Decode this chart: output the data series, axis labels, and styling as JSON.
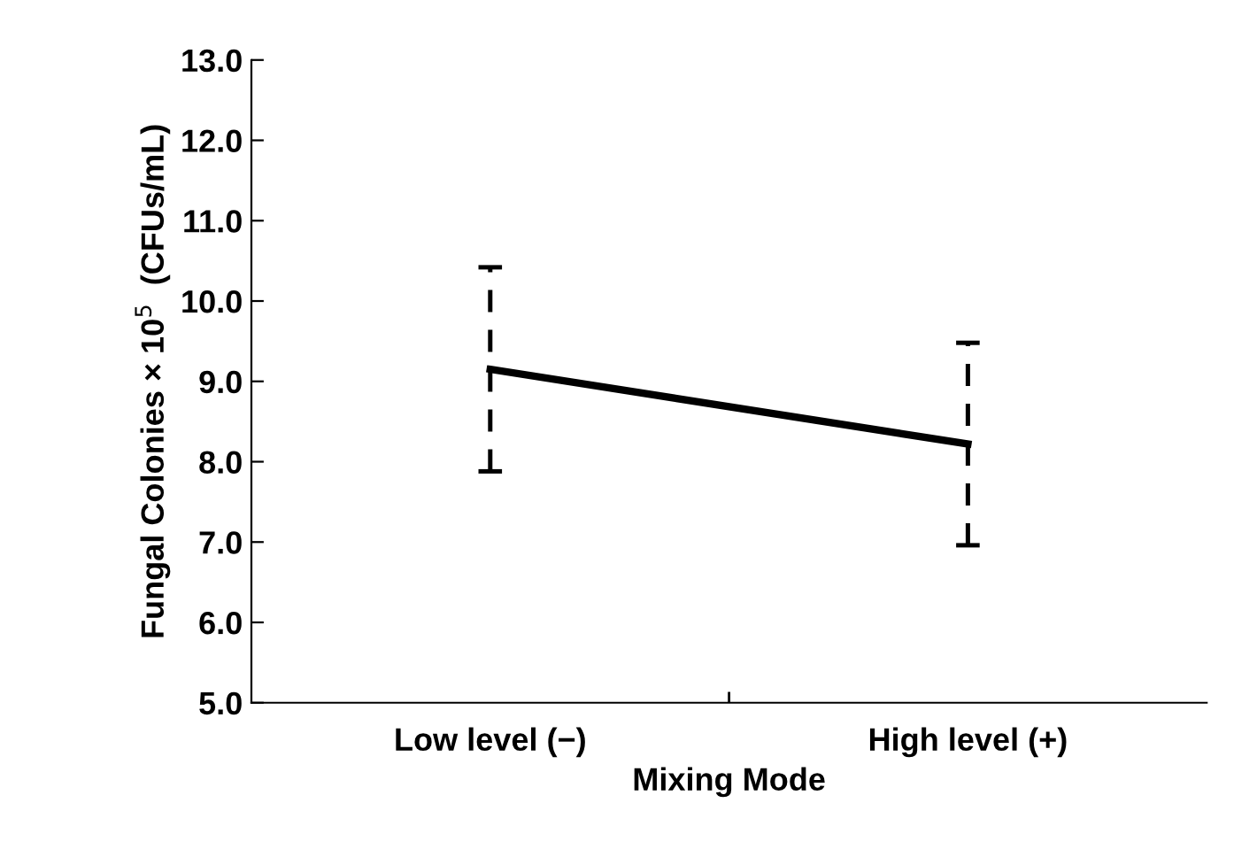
{
  "chart_data": {
    "type": "line",
    "xlabel": "Mixing Mode",
    "ylabel": "Fungal Colonies × 10$^{5}$  (CFUs/mL)",
    "categories": [
      "Low level (−)",
      "High level (+)"
    ],
    "series": [
      {
        "color": "#000000",
        "values": [
          9.15,
          8.22
        ],
        "errors": [
          1.27,
          1.26
        ]
      }
    ],
    "ylim": [
      5.0,
      13.0
    ],
    "yticks": [
      {
        "value": 5,
        "label": "5.0"
      },
      {
        "value": 6,
        "label": "6.0"
      },
      {
        "value": 7,
        "label": "7.0"
      },
      {
        "value": 8,
        "label": "8.0"
      },
      {
        "value": 9,
        "label": "9.0"
      },
      {
        "value": 10,
        "label": "10.0"
      },
      {
        "value": 11,
        "label": "11.0"
      },
      {
        "value": 12,
        "label": "12.0"
      },
      {
        "value": 13,
        "label": "13.0"
      }
    ],
    "grid": false,
    "legend": false,
    "marker": "none",
    "line_style": "solid"
  }
}
